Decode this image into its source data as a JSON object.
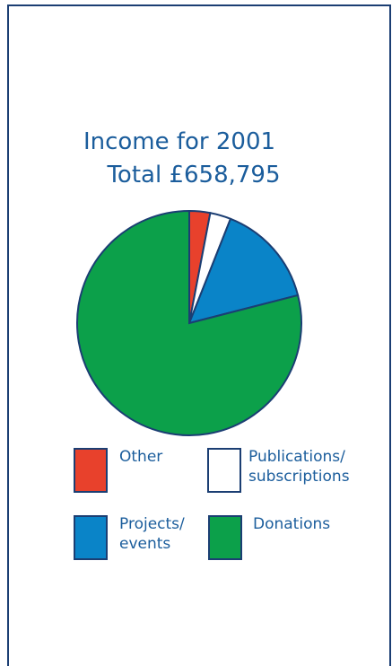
{
  "chart_data": {
    "type": "pie",
    "title": "Income for 2001",
    "subtitle": "Total £658,795",
    "categories": [
      "Other",
      "Publications/ subscriptions",
      "Projects/ events",
      "Donations"
    ],
    "values": [
      3,
      3,
      15,
      79
    ],
    "colors": [
      "#e8412c",
      "#ffffff",
      "#0a84c8",
      "#0ca04a"
    ]
  }
}
